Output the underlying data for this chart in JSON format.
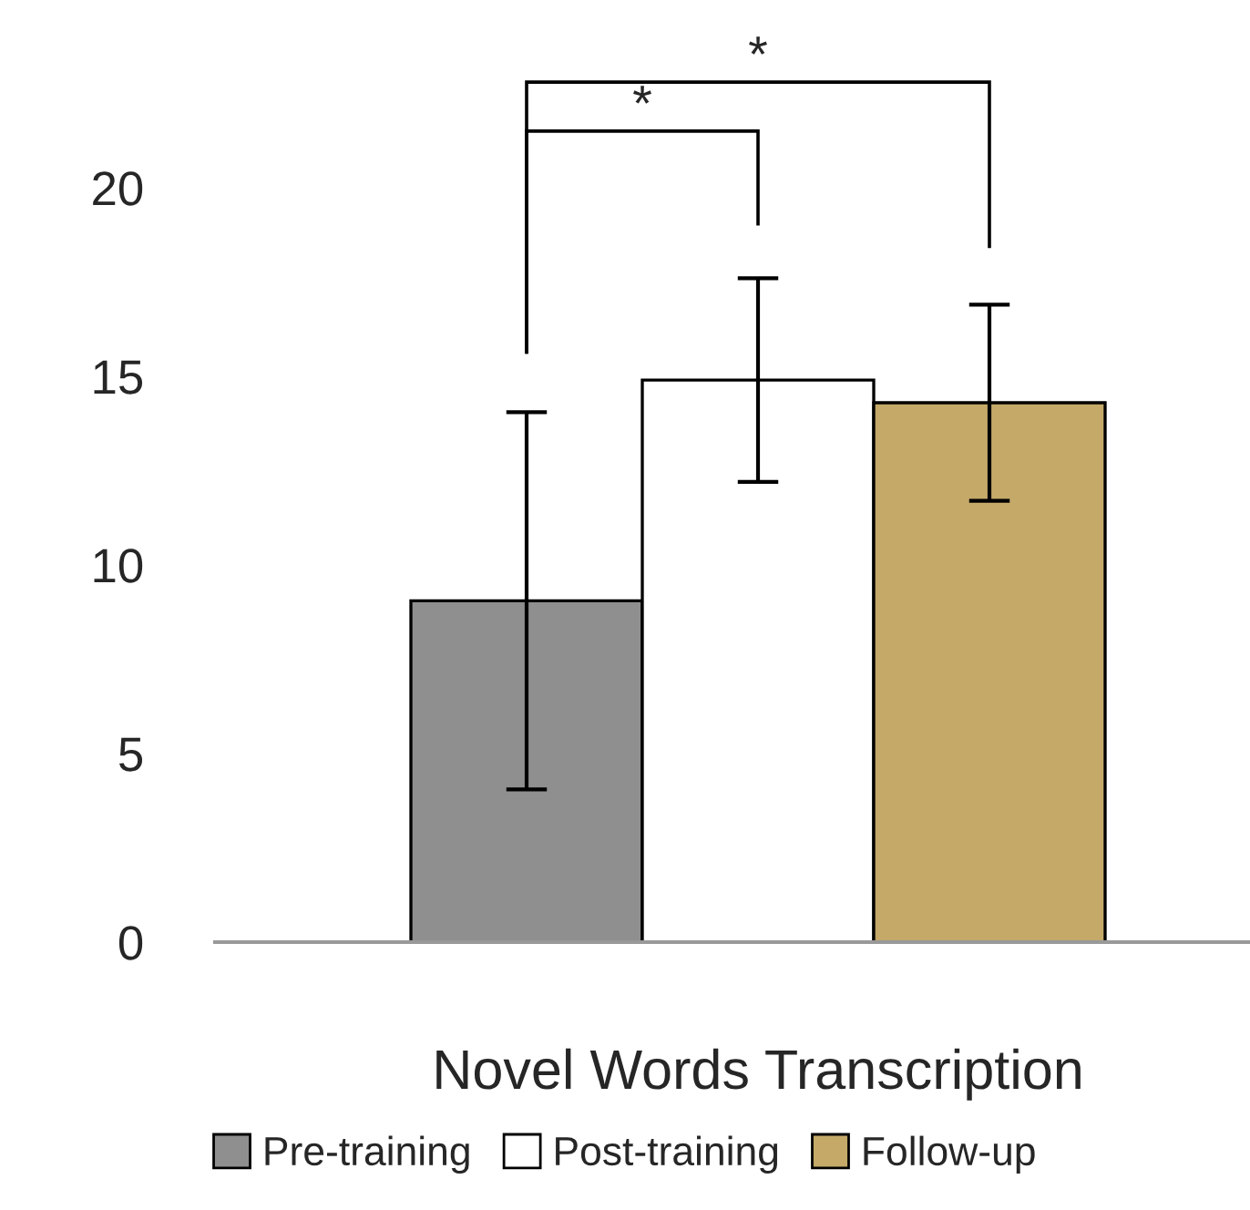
{
  "chart_data": {
    "type": "bar",
    "categories": [
      "Novel Words Transcription"
    ],
    "series": [
      {
        "name": "Pre-training",
        "color": "#8f8f8f",
        "values": [
          9.05
        ],
        "errors": [
          5.0
        ]
      },
      {
        "name": "Post-training",
        "color": "#ffffff",
        "values": [
          14.9
        ],
        "errors": [
          2.7
        ]
      },
      {
        "name": "Follow-up",
        "color": "#c4a969",
        "values": [
          14.3
        ],
        "errors": [
          2.6
        ]
      }
    ],
    "ylim": [
      0,
      20
    ],
    "yticks": [
      0,
      5,
      10,
      15,
      20
    ],
    "annotations": [
      "*",
      "*"
    ],
    "grid": false,
    "legend": "bottom"
  }
}
